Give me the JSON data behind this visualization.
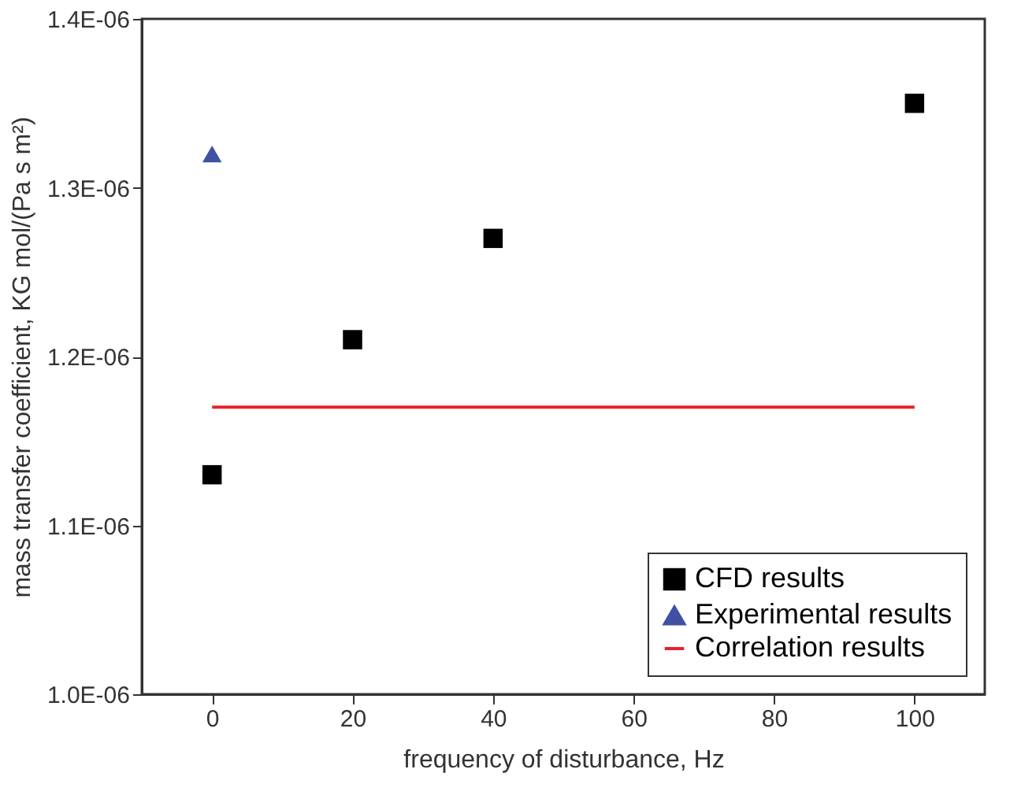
{
  "chart_data": {
    "type": "scatter",
    "xlabel": "frequency of disturbance, Hz",
    "ylabel": "mass transfer coefficient, KG mol/(Pa s m²)",
    "xlim": [
      -10,
      110
    ],
    "xticks": [
      0,
      20,
      40,
      60,
      80,
      100
    ],
    "ylim": [
      1e-06,
      1.4e-06
    ],
    "yticks": [
      {
        "value": 1e-06,
        "label": "1.0E-06"
      },
      {
        "value": 1.1e-06,
        "label": "1.1E-06"
      },
      {
        "value": 1.2e-06,
        "label": "1.2E-06"
      },
      {
        "value": 1.3e-06,
        "label": "1.3E-06"
      },
      {
        "value": 1.4e-06,
        "label": "1.4E-06"
      }
    ],
    "grid": false,
    "legend": "bottom right",
    "series": [
      {
        "name": "CFD results",
        "marker": "square",
        "color": "#000000",
        "x": [
          0,
          20,
          40,
          100
        ],
        "values": [
          1.13e-06,
          1.21e-06,
          1.27e-06,
          1.35e-06
        ]
      },
      {
        "name": "Experimental results",
        "marker": "triangle",
        "color": "#3f51a5",
        "x": [
          0
        ],
        "values": [
          1.32e-06
        ]
      },
      {
        "name": "Correlation results",
        "type": "line",
        "line_style": "solid",
        "color": "#e8212a",
        "x": [
          0,
          100
        ],
        "values": [
          1.17e-06,
          1.17e-06
        ]
      }
    ]
  }
}
